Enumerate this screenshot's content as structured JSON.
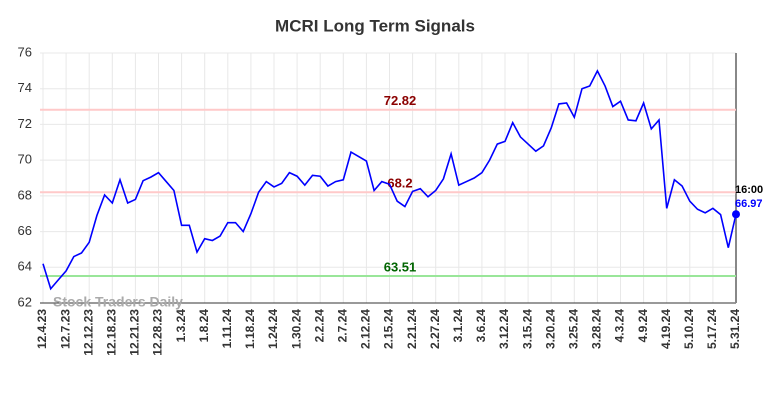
{
  "chart_data": {
    "type": "line",
    "title": "MCRI Long Term Signals",
    "categories": [
      "12.4.23",
      null,
      null,
      "12.7.23",
      null,
      null,
      "12.12.23",
      null,
      null,
      "12.18.23",
      null,
      null,
      "12.21.23",
      null,
      null,
      "12.28.23",
      null,
      null,
      "1.3.24",
      null,
      null,
      "1.8.24",
      null,
      null,
      "1.11.24",
      null,
      null,
      "1.18.24",
      null,
      null,
      "1.24.24",
      null,
      null,
      "1.30.24",
      null,
      null,
      "2.2.24",
      null,
      null,
      "2.7.24",
      null,
      null,
      "2.12.24",
      null,
      null,
      "2.15.24",
      null,
      null,
      "2.21.24",
      null,
      null,
      "2.27.24",
      null,
      null,
      "3.1.24",
      null,
      null,
      "3.6.24",
      null,
      null,
      "3.12.24",
      null,
      null,
      "3.15.24",
      null,
      null,
      "3.20.24",
      null,
      null,
      "3.25.24",
      null,
      null,
      "3.28.24",
      null,
      null,
      "4.3.24",
      null,
      null,
      "4.9.24",
      null,
      null,
      "4.19.24",
      null,
      null,
      "5.10.24",
      null,
      null,
      "5.17.24",
      null,
      null,
      "5.31.24"
    ],
    "series": [
      {
        "color": "#0000ff",
        "values": [
          64.2,
          62.8,
          63.3,
          63.8,
          64.6,
          64.8,
          65.4,
          66.9,
          68.05,
          67.6,
          68.9,
          67.6,
          67.8,
          68.85,
          69.05,
          69.3,
          68.8,
          68.3,
          66.35,
          66.35,
          64.85,
          65.6,
          65.5,
          65.75,
          66.5,
          66.5,
          66.0,
          67.0,
          68.2,
          68.8,
          68.5,
          68.7,
          69.3,
          69.1,
          68.6,
          69.15,
          69.1,
          68.55,
          68.8,
          68.9,
          70.45,
          70.2,
          69.95,
          68.3,
          68.8,
          68.65,
          67.7,
          67.4,
          68.25,
          68.4,
          67.95,
          68.3,
          68.95,
          70.35,
          68.6,
          68.8,
          69.0,
          69.3,
          70.0,
          70.9,
          71.05,
          72.1,
          71.3,
          70.9,
          70.5,
          70.8,
          71.8,
          73.15,
          73.2,
          72.4,
          74.0,
          74.15,
          75.0,
          74.15,
          73.0,
          73.3,
          72.25,
          72.2,
          73.2,
          71.75,
          72.25,
          67.3,
          68.9,
          68.55,
          67.7,
          67.25,
          67.05,
          67.3,
          66.95,
          65.1,
          66.97
        ]
      }
    ],
    "ylim": [
      62,
      76
    ],
    "yticks": [
      62,
      64,
      66,
      68,
      70,
      72,
      74,
      76
    ],
    "grid": true,
    "hlines": [
      {
        "value": 72.82,
        "color": "#ffc9c9",
        "label_color": "#8b0000"
      },
      {
        "value": 68.2,
        "color": "#ffc9c9",
        "label_color": "#8b0000"
      },
      {
        "value": 63.51,
        "color": "#99e699",
        "label_color": "#006400"
      }
    ],
    "last_time_label": "16:00",
    "watermark": "Stock Traders Daily"
  }
}
